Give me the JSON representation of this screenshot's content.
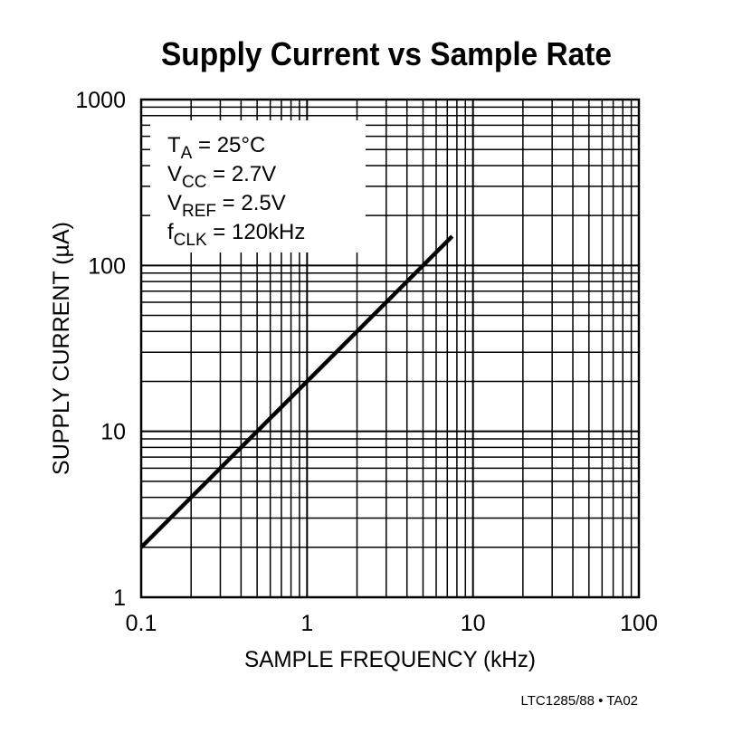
{
  "chart_data": {
    "type": "line",
    "title": "Supply Current vs Sample Rate",
    "x_label": "SAMPLE FREQUENCY (kHz)",
    "y_label": "SUPPLY CURRENT (µA)",
    "x": [
      0.1,
      7.5
    ],
    "series": [
      {
        "name": null,
        "color": "#000000",
        "values": [
          2,
          150
        ]
      }
    ],
    "x_log": true,
    "y_log": true,
    "xlim": [
      0.1,
      100
    ],
    "ylim": [
      1,
      1000
    ],
    "xticks": [
      0.1,
      1,
      10,
      100
    ],
    "yticks": [
      1,
      10,
      100,
      1000
    ],
    "grid": true,
    "minor_grid": true,
    "conditions": [
      {
        "symbol": "T",
        "subscript": "A",
        "value": " = 25°C"
      },
      {
        "symbol": "V",
        "subscript": "CC",
        "value": " = 2.7V"
      },
      {
        "symbol": "V",
        "subscript": "REF",
        "value": " = 2.5V"
      },
      {
        "symbol": "f",
        "subscript": "CLK",
        "value": " = 120kHz"
      }
    ],
    "footer": "LTC1285/88 • TA02"
  }
}
